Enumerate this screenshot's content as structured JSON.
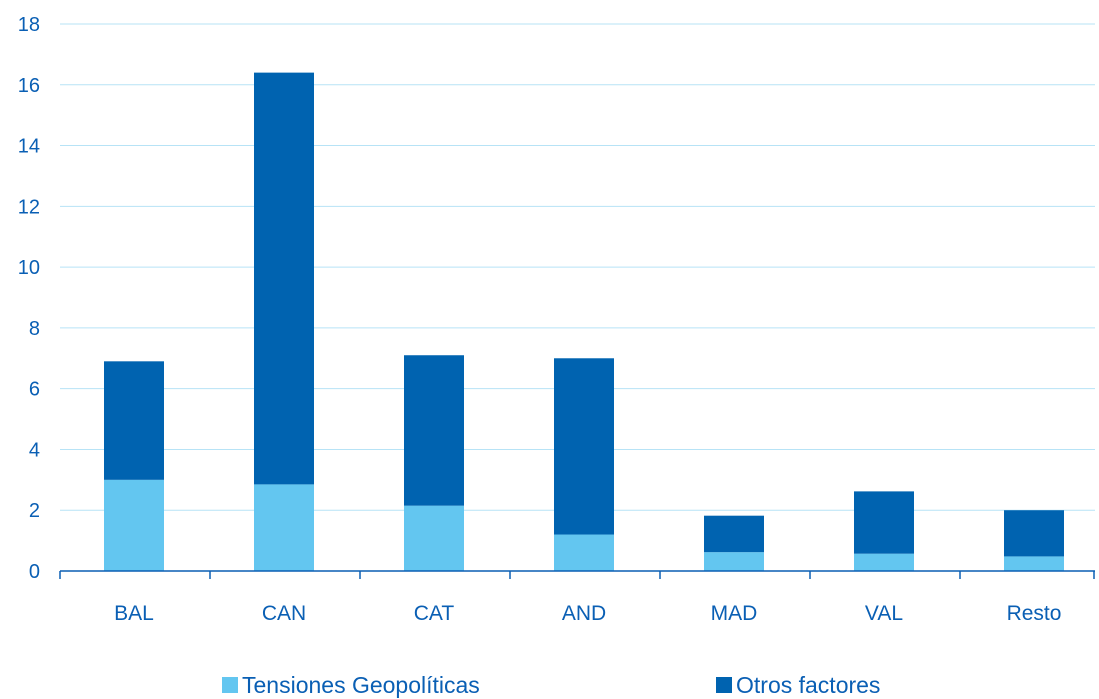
{
  "chart_data": {
    "type": "bar",
    "stacked": true,
    "categories": [
      "BAL",
      "CAN",
      "CAT",
      "AND",
      "MAD",
      "VAL",
      "Resto"
    ],
    "series": [
      {
        "name": "Tensiones Geopolíticas",
        "color": "#63c6f0",
        "values": [
          3.0,
          2.85,
          2.15,
          1.2,
          0.62,
          0.57,
          0.48
        ]
      },
      {
        "name": "Otros factores",
        "color": "#0063b0",
        "values": [
          3.9,
          13.55,
          4.95,
          5.8,
          1.2,
          2.05,
          1.52
        ]
      }
    ],
    "ylim": [
      0,
      18
    ],
    "yticks": [
      "0",
      "2",
      "4",
      "6",
      "8",
      "10",
      "12",
      "14",
      "16",
      "18"
    ],
    "grid": true,
    "legend_position": "bottom",
    "title": "",
    "xlabel": "",
    "ylabel": ""
  }
}
